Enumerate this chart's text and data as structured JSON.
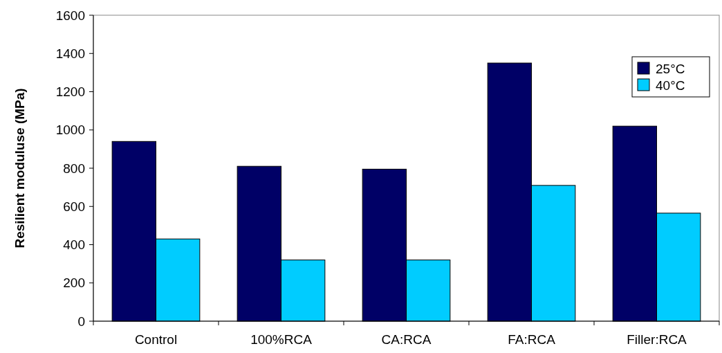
{
  "chart_data": {
    "type": "bar",
    "ylabel": "Resilient moduluse (MPa)",
    "categories": [
      "Control",
      "100%RCA",
      "CA:RCA",
      "FA:RCA",
      "Filler:RCA"
    ],
    "series": [
      {
        "name": "25°C",
        "color": "#000066",
        "values": [
          940,
          810,
          795,
          1350,
          1020
        ]
      },
      {
        "name": "40°C",
        "color": "#00ccff",
        "values": [
          430,
          320,
          320,
          710,
          565
        ]
      }
    ],
    "ylim": [
      0,
      1600
    ],
    "yticks": [
      0,
      200,
      400,
      600,
      800,
      1000,
      1200,
      1400,
      1600
    ],
    "legend": "top right"
  }
}
